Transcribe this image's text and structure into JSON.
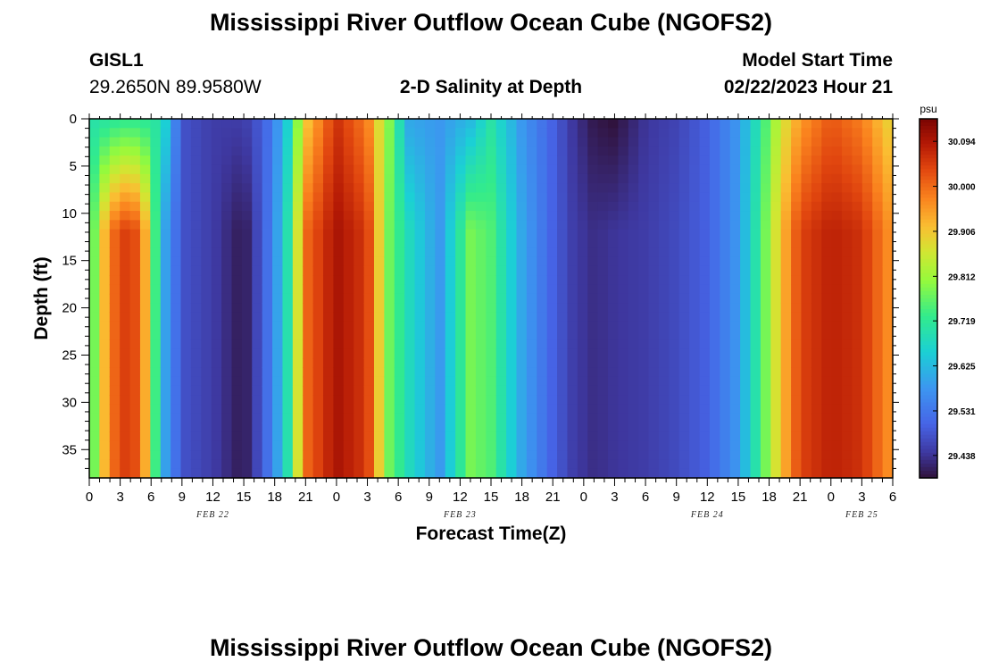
{
  "header": {
    "title": "Mississippi River Outflow Ocean Cube (NGOFS2)",
    "station_id": "GISL1",
    "station_coords": "29.2650N  89.9580W",
    "plot_title": "2-D Salinity at Depth",
    "model_start_label": "Model Start Time",
    "model_start_value": "02/22/2023 Hour 21"
  },
  "footer": {
    "title": "Mississippi River Outflow Ocean Cube (NGOFS2)"
  },
  "chart_data": {
    "type": "heatmap",
    "xlabel": "Forecast Time(Z)",
    "ylabel": "Depth (ft)",
    "x_tick_labels": [
      "0",
      "3",
      "6",
      "9",
      "12",
      "15",
      "18",
      "21",
      "0",
      "3",
      "6",
      "9",
      "12",
      "15",
      "18",
      "21",
      "0",
      "3",
      "6",
      "9",
      "12",
      "15",
      "18",
      "21",
      "0",
      "3",
      "6"
    ],
    "x_date_labels": [
      {
        "label": "FEB 22",
        "tick_index": 4
      },
      {
        "label": "FEB 23",
        "tick_index": 12
      },
      {
        "label": "FEB 24",
        "tick_index": 20
      },
      {
        "label": "FEB 25",
        "tick_index": 25
      }
    ],
    "ylim": [
      0,
      38
    ],
    "y_ticks": [
      0,
      5,
      10,
      15,
      20,
      25,
      30,
      35
    ],
    "forecast_hours": [
      0,
      78
    ],
    "colorbar": {
      "unit": "psu",
      "min": 29.391,
      "max": 30.141,
      "tick_values": [
        30.094,
        30.0,
        29.906,
        29.812,
        29.719,
        29.625,
        29.531,
        29.438
      ],
      "tick_labels": [
        "30.094",
        "30.000",
        "29.906",
        "29.812",
        "29.719",
        "29.625",
        "29.531",
        "29.438"
      ]
    },
    "salinity_profiles": [
      {
        "hour": 0,
        "surface": 29.7,
        "bottom": 29.68
      },
      {
        "hour": 1,
        "surface": 29.7,
        "bottom": 29.88
      },
      {
        "hour": 3,
        "surface": 29.72,
        "bottom": 30.05
      },
      {
        "hour": 5,
        "surface": 29.72,
        "bottom": 30.02
      },
      {
        "hour": 7,
        "surface": 29.7,
        "bottom": 29.62
      },
      {
        "hour": 9,
        "surface": 29.48,
        "bottom": 29.48
      },
      {
        "hour": 12,
        "surface": 29.45,
        "bottom": 29.45
      },
      {
        "hour": 15,
        "surface": 29.45,
        "bottom": 29.4
      },
      {
        "hour": 17,
        "surface": 29.5,
        "bottom": 29.5
      },
      {
        "hour": 19,
        "surface": 29.62,
        "bottom": 29.65
      },
      {
        "hour": 21,
        "surface": 29.9,
        "bottom": 30.0
      },
      {
        "hour": 24,
        "surface": 30.06,
        "bottom": 30.1
      },
      {
        "hour": 27,
        "surface": 29.98,
        "bottom": 30.05
      },
      {
        "hour": 29,
        "surface": 29.8,
        "bottom": 29.78
      },
      {
        "hour": 31,
        "surface": 29.6,
        "bottom": 29.68
      },
      {
        "hour": 34,
        "surface": 29.58,
        "bottom": 29.58
      },
      {
        "hour": 37,
        "surface": 29.62,
        "bottom": 29.78
      },
      {
        "hour": 39,
        "surface": 29.7,
        "bottom": 29.75
      },
      {
        "hour": 42,
        "surface": 29.58,
        "bottom": 29.6
      },
      {
        "hour": 45,
        "surface": 29.5,
        "bottom": 29.5
      },
      {
        "hour": 47,
        "surface": 29.44,
        "bottom": 29.45
      },
      {
        "hour": 49,
        "surface": 29.4,
        "bottom": 29.43
      },
      {
        "hour": 51,
        "surface": 29.39,
        "bottom": 29.44
      },
      {
        "hour": 54,
        "surface": 29.44,
        "bottom": 29.45
      },
      {
        "hour": 57,
        "surface": 29.46,
        "bottom": 29.47
      },
      {
        "hour": 60,
        "surface": 29.5,
        "bottom": 29.5
      },
      {
        "hour": 63,
        "surface": 29.58,
        "bottom": 29.58
      },
      {
        "hour": 65,
        "surface": 29.7,
        "bottom": 29.72
      },
      {
        "hour": 67,
        "surface": 29.85,
        "bottom": 29.9
      },
      {
        "hour": 69,
        "surface": 29.95,
        "bottom": 30.04
      },
      {
        "hour": 72,
        "surface": 30.02,
        "bottom": 30.08
      },
      {
        "hour": 75,
        "surface": 29.98,
        "bottom": 30.06
      },
      {
        "hour": 78,
        "surface": 29.88,
        "bottom": 29.95
      }
    ]
  }
}
